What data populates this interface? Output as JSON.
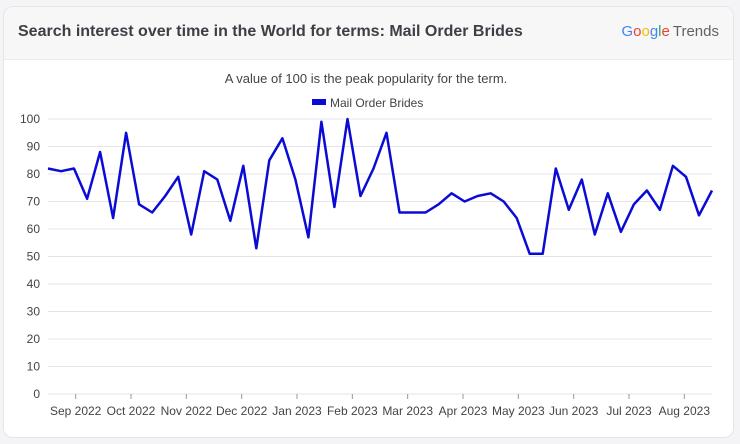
{
  "header": {
    "title": "Search interest over time in the World for terms: Mail Order Brides",
    "brand": {
      "g1": "G",
      "g2": "o",
      "g3": "o",
      "g4": "g",
      "g5": "l",
      "g6": "e",
      "trends": "Trends"
    }
  },
  "colors": {
    "series": "#0b0bd6",
    "grid": "#e4e4e8",
    "axis_text": "#444444"
  },
  "chart_data": {
    "type": "line",
    "title": "",
    "subtitle": "A value of 100 is the peak popularity for the term.",
    "xlabel": "",
    "ylabel": "",
    "ylim": [
      0,
      100
    ],
    "yticks": [
      0,
      10,
      20,
      30,
      40,
      50,
      60,
      70,
      80,
      90,
      100
    ],
    "grid": true,
    "legend_position": "top-center",
    "xtick_labels": [
      "Sep 2022",
      "Oct 2022",
      "Nov 2022",
      "Dec 2022",
      "Jan 2023",
      "Feb 2023",
      "Mar 2023",
      "Apr 2023",
      "May 2023",
      "Jun 2023",
      "Jul 2023",
      "Aug 2023"
    ],
    "series": [
      {
        "name": "Mail Order Brides",
        "values": [
          82,
          81,
          82,
          71,
          88,
          64,
          95,
          69,
          66,
          72,
          79,
          58,
          81,
          78,
          63,
          83,
          53,
          85,
          93,
          78,
          57,
          99,
          68,
          100,
          72,
          82,
          95,
          66,
          66,
          66,
          69,
          73,
          70,
          72,
          73,
          70,
          64,
          51,
          51,
          82,
          67,
          78,
          58,
          73,
          59,
          69,
          74,
          67,
          83,
          79,
          65,
          74
        ]
      }
    ]
  }
}
